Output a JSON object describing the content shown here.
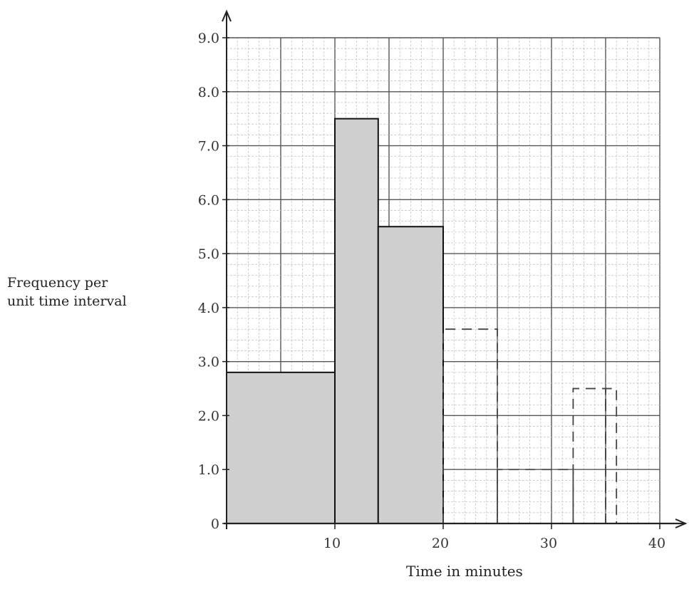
{
  "chart_data": {
    "type": "bar",
    "histogram": true,
    "xlabel": "Time in minutes",
    "ylabel": [
      "Frequency per",
      "unit time interval"
    ],
    "xlim": [
      0,
      40
    ],
    "ylim": [
      0,
      9
    ],
    "x_ticks": [
      {
        "value": 10,
        "label": "10"
      },
      {
        "value": 20,
        "label": "20"
      },
      {
        "value": 30,
        "label": "30"
      },
      {
        "value": 40,
        "label": "40"
      }
    ],
    "y_ticks": [
      {
        "value": 0,
        "label": "0"
      },
      {
        "value": 1,
        "label": "1.0"
      },
      {
        "value": 2,
        "label": "2.0"
      },
      {
        "value": 3,
        "label": "3.0"
      },
      {
        "value": 4,
        "label": "4.0"
      },
      {
        "value": 5,
        "label": "5.0"
      },
      {
        "value": 6,
        "label": "6.0"
      },
      {
        "value": 7,
        "label": "7.0"
      },
      {
        "value": 8,
        "label": "8.0"
      },
      {
        "value": 9,
        "label": "9.0"
      }
    ],
    "grid": true,
    "bars": [
      {
        "x_start": 0,
        "x_end": 10,
        "value": 2.8
      },
      {
        "x_start": 10,
        "x_end": 14,
        "value": 7.5
      },
      {
        "x_start": 14,
        "x_end": 20,
        "value": 5.5
      }
    ],
    "dashed_outlines": [
      {
        "x_start": 20,
        "x_end": 25,
        "value": 3.6
      },
      {
        "x_start": 25,
        "x_end": 32,
        "value": 1.0
      },
      {
        "x_start": 32,
        "x_end": 35,
        "value": 2.5
      },
      {
        "x_start": 35,
        "x_end": 36,
        "value": 2.5
      }
    ],
    "colors": {
      "bar_fill": "#cfcfcf",
      "grid_major": "#555555",
      "grid_minor": "#bdbdbd",
      "axis": "#222222"
    }
  }
}
